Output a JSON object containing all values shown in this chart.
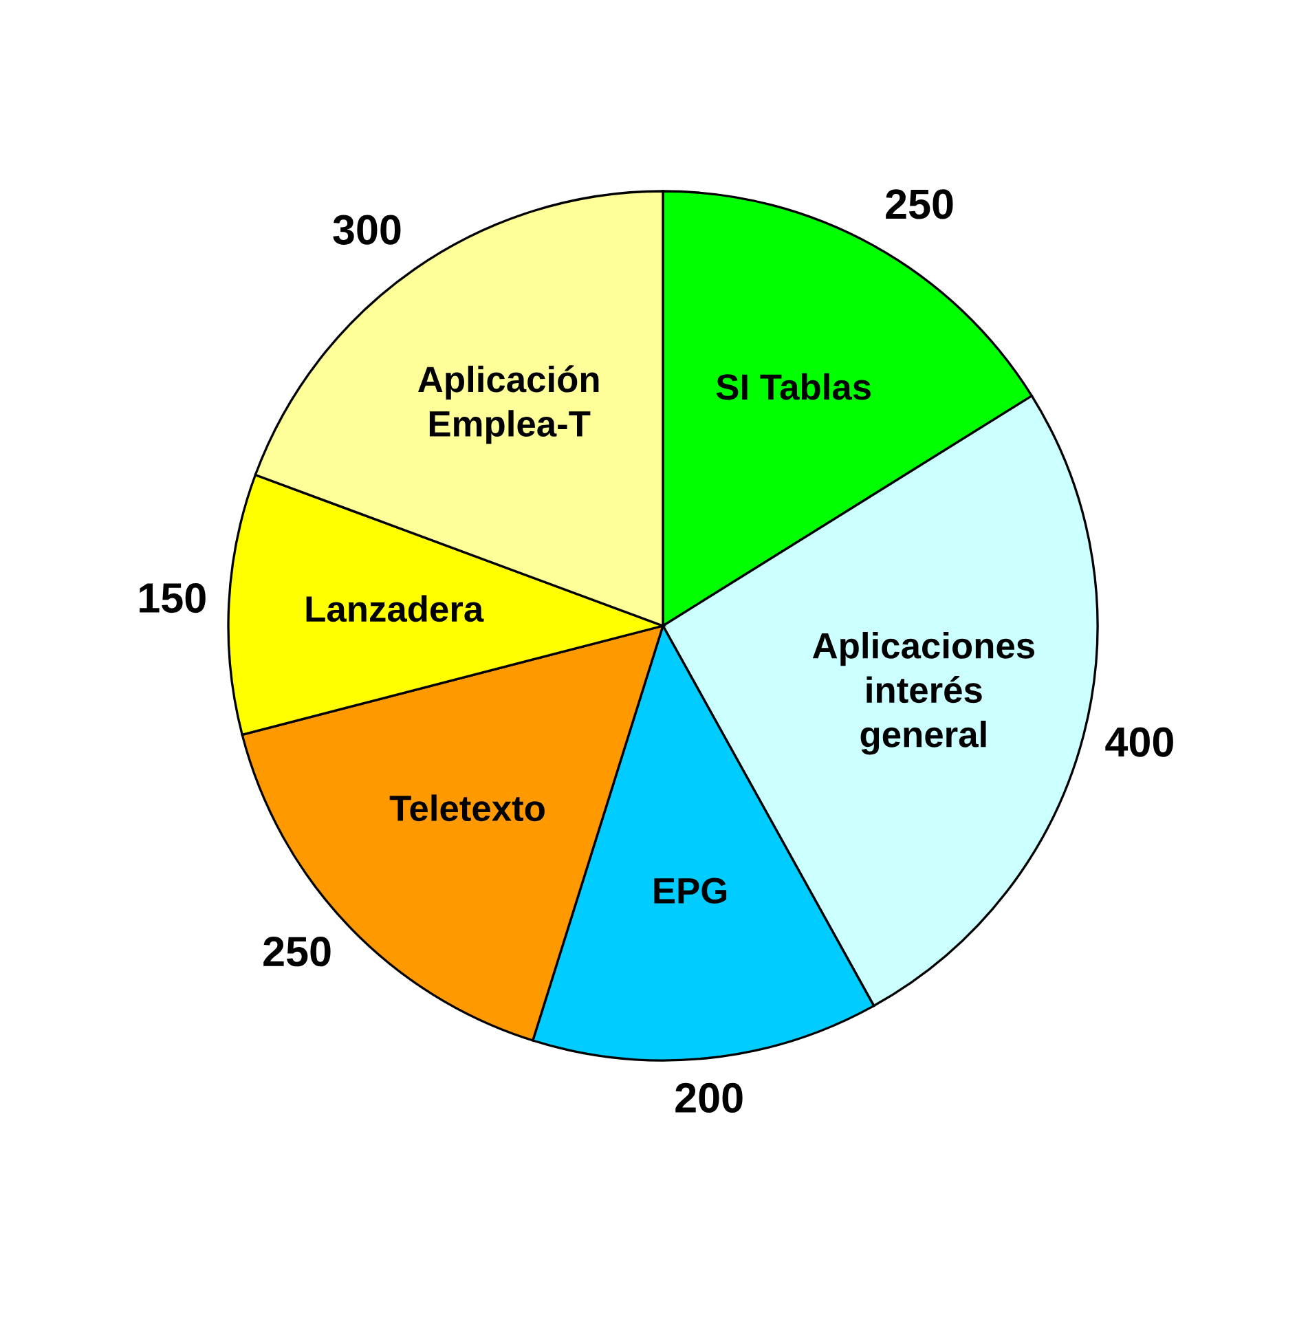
{
  "chart_data": {
    "type": "pie",
    "categories": [
      "SI Tablas",
      "Aplicaciones\ninterés\ngeneral",
      "EPG",
      "Teletexto",
      "Lanzadera",
      "Aplicación\nEmplea-T"
    ],
    "values": [
      250,
      400,
      200,
      250,
      150,
      300
    ],
    "colors": [
      "#00ff00",
      "#ccffff",
      "#00ccff",
      "#ff9900",
      "#ffff00",
      "#ffff99"
    ],
    "data_labels": true
  }
}
